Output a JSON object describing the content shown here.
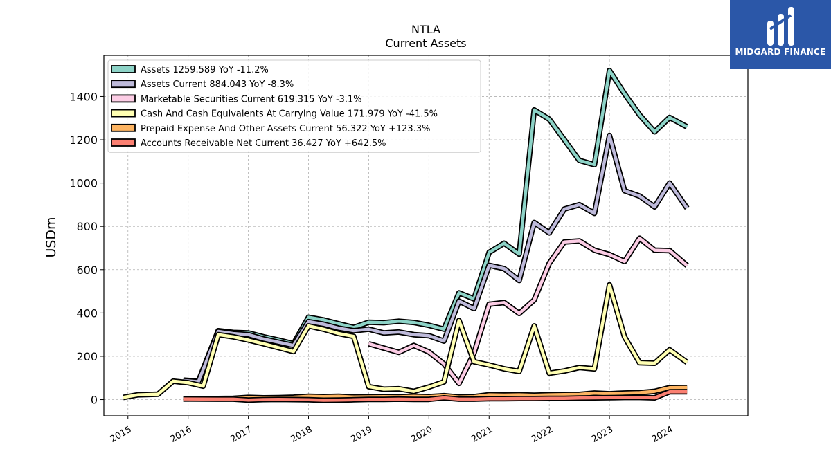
{
  "brand": {
    "name": "MIDGARD FINANCE",
    "color": "#2b57a8"
  },
  "chart_data": {
    "type": "line",
    "title": "NTLA",
    "subtitle": "Current  Assets",
    "ylabel": "USDm",
    "xlabel": "",
    "ylim": [
      -75,
      1590
    ],
    "xlim": [
      2014.6,
      2025.3
    ],
    "yticks": [
      0,
      200,
      400,
      600,
      800,
      1000,
      1200,
      1400
    ],
    "xticks": [
      "2015",
      "2016",
      "2017",
      "2018",
      "2019",
      "2020",
      "2021",
      "2022",
      "2023",
      "2024"
    ],
    "grid": true,
    "legend_position": "top-left",
    "series": [
      {
        "name": "Assets  1259.589 YoY -11.2%",
        "color": "#8dd3c7",
        "points": [
          [
            2015.92,
            90
          ],
          [
            2016.17,
            85
          ],
          [
            2016.5,
            318
          ],
          [
            2016.75,
            310
          ],
          [
            2017.0,
            308
          ],
          [
            2017.25,
            290
          ],
          [
            2017.5,
            275
          ],
          [
            2017.75,
            258
          ],
          [
            2018.0,
            380
          ],
          [
            2018.25,
            368
          ],
          [
            2018.5,
            350
          ],
          [
            2018.75,
            333
          ],
          [
            2019.0,
            357
          ],
          [
            2019.25,
            355
          ],
          [
            2019.5,
            362
          ],
          [
            2019.75,
            356
          ],
          [
            2020.0,
            343
          ],
          [
            2020.25,
            325
          ],
          [
            2020.5,
            493
          ],
          [
            2020.75,
            465
          ],
          [
            2021.0,
            680
          ],
          [
            2021.25,
            722
          ],
          [
            2021.5,
            672
          ],
          [
            2021.75,
            1338
          ],
          [
            2022.0,
            1295
          ],
          [
            2022.25,
            1200
          ],
          [
            2022.5,
            1105
          ],
          [
            2022.75,
            1085
          ],
          [
            2023.0,
            1520
          ],
          [
            2023.25,
            1413
          ],
          [
            2023.5,
            1315
          ],
          [
            2023.75,
            1237
          ],
          [
            2024.0,
            1303
          ],
          [
            2024.29,
            1260
          ]
        ]
      },
      {
        "name": "Assets Current  884.043 YoY -8.3%",
        "color": "#bebada",
        "points": [
          [
            2015.92,
            88
          ],
          [
            2016.17,
            83
          ],
          [
            2016.5,
            315
          ],
          [
            2016.75,
            305
          ],
          [
            2017.0,
            300
          ],
          [
            2017.25,
            280
          ],
          [
            2017.5,
            265
          ],
          [
            2017.75,
            250
          ],
          [
            2018.0,
            360
          ],
          [
            2018.25,
            348
          ],
          [
            2018.5,
            330
          ],
          [
            2018.75,
            318
          ],
          [
            2019.0,
            325
          ],
          [
            2019.25,
            308
          ],
          [
            2019.5,
            312
          ],
          [
            2019.75,
            300
          ],
          [
            2020.0,
            295
          ],
          [
            2020.25,
            270
          ],
          [
            2020.5,
            455
          ],
          [
            2020.75,
            420
          ],
          [
            2021.0,
            620
          ],
          [
            2021.25,
            605
          ],
          [
            2021.5,
            550
          ],
          [
            2021.75,
            818
          ],
          [
            2022.0,
            770
          ],
          [
            2022.25,
            880
          ],
          [
            2022.5,
            900
          ],
          [
            2022.75,
            860
          ],
          [
            2023.0,
            1220
          ],
          [
            2023.25,
            965
          ],
          [
            2023.5,
            940
          ],
          [
            2023.75,
            890
          ],
          [
            2024.0,
            1000
          ],
          [
            2024.29,
            884
          ]
        ]
      },
      {
        "name": "Marketable Securities Current  619.315 YoY -3.1%",
        "color": "#fccde5",
        "points": [
          [
            2019.0,
            258
          ],
          [
            2019.25,
            238
          ],
          [
            2019.5,
            218
          ],
          [
            2019.75,
            250
          ],
          [
            2020.0,
            220
          ],
          [
            2020.25,
            165
          ],
          [
            2020.5,
            75
          ],
          [
            2020.75,
            215
          ],
          [
            2021.0,
            440
          ],
          [
            2021.25,
            448
          ],
          [
            2021.5,
            398
          ],
          [
            2021.75,
            460
          ],
          [
            2022.0,
            630
          ],
          [
            2022.25,
            728
          ],
          [
            2022.5,
            733
          ],
          [
            2022.75,
            690
          ],
          [
            2023.0,
            670
          ],
          [
            2023.25,
            638
          ],
          [
            2023.5,
            745
          ],
          [
            2023.75,
            690
          ],
          [
            2024.0,
            688
          ],
          [
            2024.29,
            619
          ]
        ]
      },
      {
        "name": "Cash And Cash Equivalents At Carrying Value  171.979 YoY -41.5%",
        "color": "#ffffb3",
        "points": [
          [
            2014.92,
            10
          ],
          [
            2015.17,
            22
          ],
          [
            2015.5,
            25
          ],
          [
            2015.75,
            85
          ],
          [
            2016.0,
            78
          ],
          [
            2016.25,
            62
          ],
          [
            2016.5,
            300
          ],
          [
            2016.75,
            290
          ],
          [
            2017.0,
            275
          ],
          [
            2017.25,
            258
          ],
          [
            2017.5,
            240
          ],
          [
            2017.75,
            222
          ],
          [
            2018.0,
            340
          ],
          [
            2018.25,
            325
          ],
          [
            2018.5,
            305
          ],
          [
            2018.75,
            292
          ],
          [
            2019.0,
            60
          ],
          [
            2019.25,
            48
          ],
          [
            2019.5,
            50
          ],
          [
            2019.75,
            38
          ],
          [
            2020.0,
            58
          ],
          [
            2020.25,
            82
          ],
          [
            2020.5,
            365
          ],
          [
            2020.75,
            175
          ],
          [
            2021.0,
            160
          ],
          [
            2021.25,
            142
          ],
          [
            2021.5,
            130
          ],
          [
            2021.75,
            340
          ],
          [
            2022.0,
            122
          ],
          [
            2022.25,
            132
          ],
          [
            2022.5,
            148
          ],
          [
            2022.75,
            142
          ],
          [
            2023.0,
            530
          ],
          [
            2023.25,
            290
          ],
          [
            2023.5,
            170
          ],
          [
            2023.75,
            168
          ],
          [
            2024.0,
            230
          ],
          [
            2024.29,
            172
          ]
        ]
      },
      {
        "name": "Prepaid Expense And Other Assets Current  56.322 YoY +123.3%",
        "color": "#fdb462",
        "points": [
          [
            2015.92,
            3
          ],
          [
            2016.5,
            5
          ],
          [
            2016.75,
            6
          ],
          [
            2017.0,
            10
          ],
          [
            2017.25,
            8
          ],
          [
            2017.5,
            9
          ],
          [
            2017.75,
            11
          ],
          [
            2018.0,
            15
          ],
          [
            2018.25,
            14
          ],
          [
            2018.5,
            15
          ],
          [
            2018.75,
            12
          ],
          [
            2019.0,
            13
          ],
          [
            2019.25,
            14
          ],
          [
            2019.5,
            13
          ],
          [
            2019.75,
            15
          ],
          [
            2020.0,
            14
          ],
          [
            2020.25,
            18
          ],
          [
            2020.5,
            12
          ],
          [
            2020.75,
            14
          ],
          [
            2021.0,
            22
          ],
          [
            2021.25,
            21
          ],
          [
            2021.5,
            22
          ],
          [
            2021.75,
            20
          ],
          [
            2022.0,
            22
          ],
          [
            2022.25,
            23
          ],
          [
            2022.5,
            24
          ],
          [
            2022.75,
            30
          ],
          [
            2023.0,
            27
          ],
          [
            2023.25,
            30
          ],
          [
            2023.5,
            32
          ],
          [
            2023.75,
            38
          ],
          [
            2024.0,
            55
          ],
          [
            2024.29,
            56
          ]
        ]
      },
      {
        "name": "Accounts Receivable Net Current  36.427 YoY +642.5%",
        "color": "#fb8072",
        "points": [
          [
            2015.92,
            3
          ],
          [
            2016.5,
            2
          ],
          [
            2016.75,
            2
          ],
          [
            2017.0,
            -2
          ],
          [
            2017.25,
            0
          ],
          [
            2017.5,
            1
          ],
          [
            2017.75,
            0
          ],
          [
            2018.0,
            -1
          ],
          [
            2018.25,
            -3
          ],
          [
            2018.5,
            -2
          ],
          [
            2018.75,
            -1
          ],
          [
            2019.0,
            1
          ],
          [
            2019.25,
            1
          ],
          [
            2019.5,
            2
          ],
          [
            2019.75,
            1
          ],
          [
            2020.0,
            1
          ],
          [
            2020.25,
            8
          ],
          [
            2020.5,
            2
          ],
          [
            2020.75,
            2
          ],
          [
            2021.0,
            4
          ],
          [
            2021.25,
            4
          ],
          [
            2021.5,
            5
          ],
          [
            2021.75,
            5
          ],
          [
            2022.0,
            6
          ],
          [
            2022.25,
            6
          ],
          [
            2022.5,
            7
          ],
          [
            2022.75,
            8
          ],
          [
            2023.0,
            9
          ],
          [
            2023.25,
            10
          ],
          [
            2023.5,
            10
          ],
          [
            2023.75,
            8
          ],
          [
            2024.0,
            36
          ],
          [
            2024.29,
            36
          ]
        ]
      }
    ]
  }
}
